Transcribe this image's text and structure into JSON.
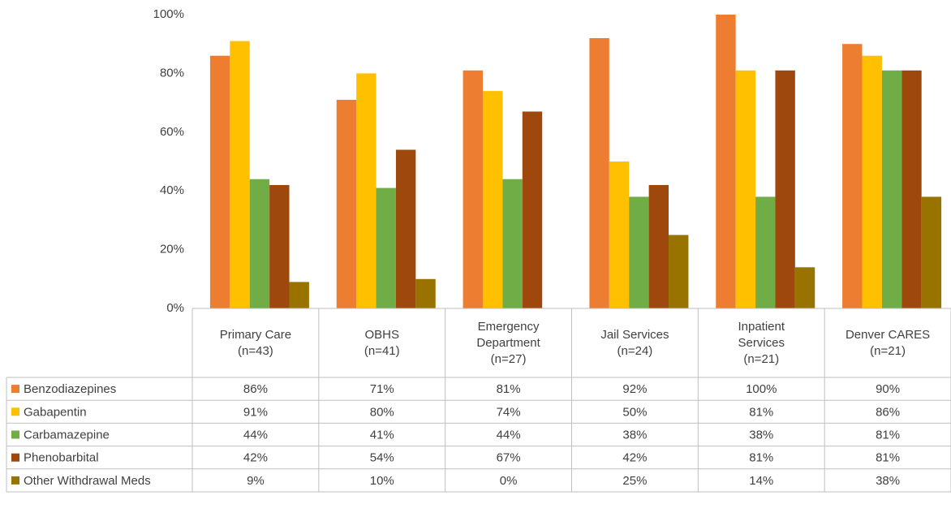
{
  "chart_data": {
    "type": "bar",
    "categories": [
      "Primary Care\n(n=43)",
      "OBHS\n(n=41)",
      "Emergency\nDepartment\n(n=27)",
      "Jail Services\n(n=24)",
      "Inpatient\nServices\n(n=21)",
      "Denver CARES\n(n=21)"
    ],
    "series": [
      {
        "name": "Benzodiazepines",
        "color": "#ED7D31",
        "values": [
          86,
          71,
          81,
          92,
          100,
          90
        ],
        "value_labels": [
          "86%",
          "71%",
          "81%",
          "92%",
          "100%",
          "90%"
        ]
      },
      {
        "name": "Gabapentin",
        "color": "#FFC000",
        "values": [
          91,
          80,
          74,
          50,
          81,
          86
        ],
        "value_labels": [
          "91%",
          "80%",
          "74%",
          "50%",
          "81%",
          "86%"
        ]
      },
      {
        "name": "Carbamazepine",
        "color": "#70AD47",
        "values": [
          44,
          41,
          44,
          38,
          38,
          81
        ],
        "value_labels": [
          "44%",
          "41%",
          "44%",
          "38%",
          "38%",
          "81%"
        ]
      },
      {
        "name": "Phenobarbital",
        "color": "#9E480E",
        "values": [
          42,
          54,
          67,
          42,
          81,
          81
        ],
        "value_labels": [
          "42%",
          "54%",
          "67%",
          "42%",
          "81%",
          "81%"
        ]
      },
      {
        "name": "Other Withdrawal Meds",
        "color": "#997300",
        "values": [
          9,
          10,
          0,
          25,
          14,
          38
        ],
        "value_labels": [
          "9%",
          "10%",
          "0%",
          "25%",
          "14%",
          "38%"
        ]
      }
    ],
    "ylim": [
      0,
      100
    ],
    "yticks": [
      {
        "value": 0,
        "label": "0%"
      },
      {
        "value": 20,
        "label": "20%"
      },
      {
        "value": 40,
        "label": "40%"
      },
      {
        "value": 60,
        "label": "60%"
      },
      {
        "value": 80,
        "label": "80%"
      },
      {
        "value": 100,
        "label": "100%"
      }
    ],
    "grid": false
  }
}
